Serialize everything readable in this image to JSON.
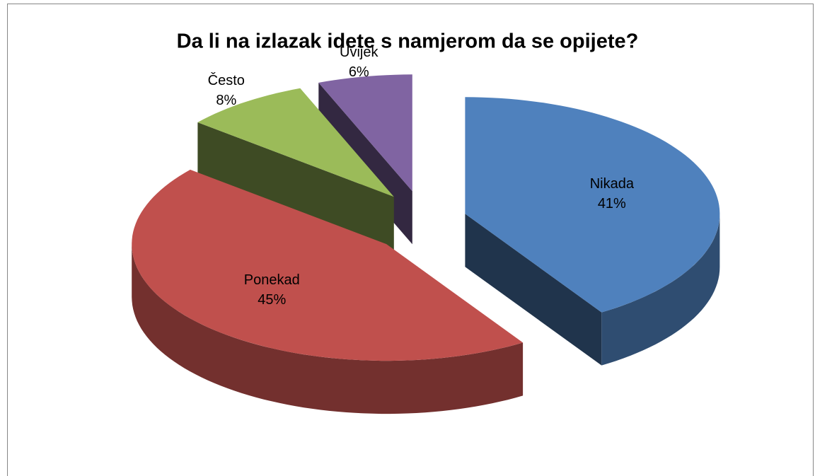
{
  "chart_data": {
    "type": "pie3d",
    "title": "Da li na izlazak idete s namjerom da se opijete?",
    "categories": [
      "Nikada",
      "Ponekad",
      "Često",
      "Uvijek"
    ],
    "values": [
      41,
      45,
      8,
      6
    ],
    "value_labels": [
      "41%",
      "45%",
      "8%",
      "6%"
    ],
    "colors": [
      "#4f81bd",
      "#c0504d",
      "#9bbb59",
      "#8064a2"
    ]
  }
}
